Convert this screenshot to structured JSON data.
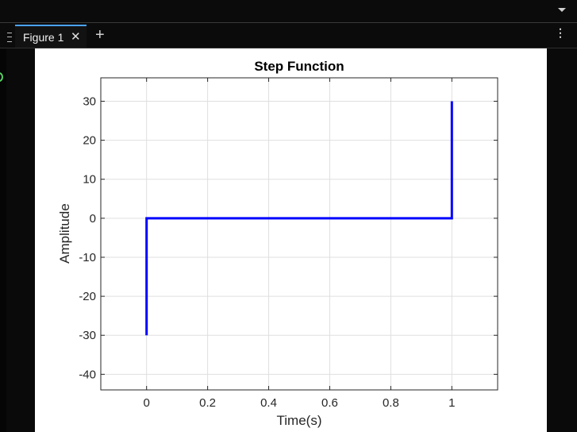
{
  "tab": {
    "label": "Figure 1",
    "close_glyph": "✕"
  },
  "toolbar": {
    "add_glyph": "+",
    "menu_glyph": "⋮"
  },
  "chart_data": {
    "type": "line",
    "title": "Step Function",
    "xlabel": "Time(s)",
    "ylabel": "Amplitude",
    "xlim": [
      -0.15,
      1.15
    ],
    "ylim": [
      -44,
      36
    ],
    "xticks": [
      0,
      0.2,
      0.4,
      0.6,
      0.8,
      1
    ],
    "xticklabels": [
      "0",
      "0.2",
      "0.4",
      "0.6",
      "0.8",
      "1"
    ],
    "yticks": [
      -40,
      -30,
      -20,
      -10,
      0,
      10,
      20,
      30
    ],
    "yticklabels": [
      "-40",
      "-30",
      "-20",
      "-10",
      "0",
      "10",
      "20",
      "30"
    ],
    "grid": true,
    "series": [
      {
        "color": "#0000ff",
        "x": [
          0,
          0,
          1,
          1
        ],
        "y": [
          -30,
          0,
          0,
          30
        ]
      }
    ]
  }
}
